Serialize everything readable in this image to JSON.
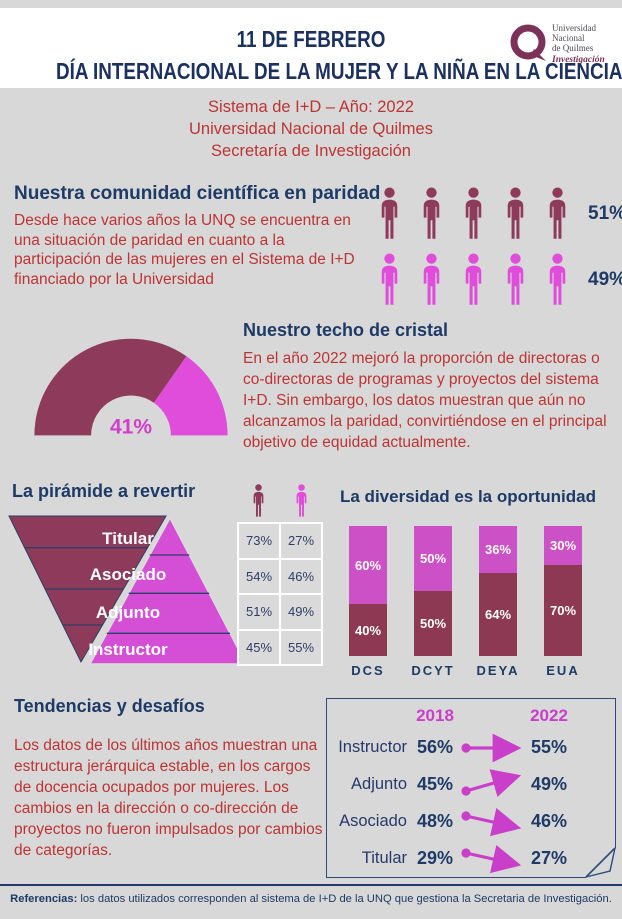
{
  "colors": {
    "background": "#d8d8d8",
    "band": "#ffffff",
    "navy": "#1e3a66",
    "red": "#bc3434",
    "maroon": "#8e3a5a",
    "magenta_bright": "#e04ddb",
    "pyramid_magenta": "#d44fd6",
    "bar_magenta": "#cc50c6",
    "bar_maroon": "#8d3954",
    "trend_magenta": "#c93fc9",
    "logo_plum": "#7c3158"
  },
  "header": {
    "title_line1": "11 DE FEBRERO",
    "title_line2": "DÍA INTERNACIONAL DE LA MUJER Y LA NIÑA EN LA CIENCIA",
    "logo": {
      "line1": "Universidad",
      "line2": "Nacional",
      "line3": "de Quilmes",
      "line4": "Investigación"
    }
  },
  "subtitle": {
    "line1": "Sistema de I+D – Año: 2022",
    "line2": "Universidad Nacional de Quilmes",
    "line3": "Secretaría de Investigación"
  },
  "paridad": {
    "heading": "Nuestra comunidad científica en paridad",
    "body": "Desde hace varios años la UNQ se encuentra en una situación de paridad en cuanto a la participación de las mujeres en el Sistema de I+D financiado por la Universidad",
    "men_count": 5,
    "women_count": 5,
    "men_pct": "51%",
    "women_pct": "49%"
  },
  "techo": {
    "heading": "Nuestro techo de cristal",
    "body": "En el año 2022 mejoró la proporción de directoras o co-directoras de programas y proyectos del sistema I+D. Sin embargo, los datos muestran que aún no alcanzamos la paridad, convirtiéndose en el principal objetivo de equidad actualmente.",
    "gauge_label": "41%"
  },
  "piramide": {
    "heading": "La pirámide a revertir",
    "levels": [
      "Titular",
      "Asociado",
      "Adjunto",
      "Instructor"
    ],
    "table_rows": [
      [
        "73%",
        "27%"
      ],
      [
        "54%",
        "46%"
      ],
      [
        "51%",
        "49%"
      ],
      [
        "45%",
        "55%"
      ]
    ]
  },
  "diversidad": {
    "heading": "La diversidad es la oportunidad"
  },
  "tendencias": {
    "heading": "Tendencias y desafíos",
    "body": "Los datos de los últimos años muestran una estructura jerárquica estable, en los cargos de docencia ocupados por mujeres. Los cambios en la dirección o co-dirección de proyectos no fueron impulsados por cambios de categorías.",
    "year_headers": [
      "2018",
      "2022"
    ],
    "rows": [
      {
        "label": "Instructor",
        "v2018": "56%",
        "v2022": "55%",
        "trend": "flat"
      },
      {
        "label": "Adjunto",
        "v2018": "45%",
        "v2022": "49%",
        "trend": "up"
      },
      {
        "label": "Asociado",
        "v2018": "48%",
        "v2022": "46%",
        "trend": "down"
      },
      {
        "label": "Titular",
        "v2018": "29%",
        "v2022": "27%",
        "trend": "down"
      }
    ]
  },
  "footer": {
    "bold": "Referencias:",
    "text": " los datos utilizados corresponden al sistema de I+D de la UNQ que gestiona la Secretaria de Investigación."
  },
  "chart_data": [
    {
      "id": "paridad",
      "type": "pictogram",
      "title": "Nuestra comunidad científica en paridad",
      "categories": [
        "fila bordó (5 íconos)",
        "fila magenta (5 íconos)"
      ],
      "values": [
        51,
        49
      ],
      "unit": "%"
    },
    {
      "id": "techo",
      "type": "gauge",
      "title": "Nuestro techo de cristal",
      "value": 41,
      "unit": "%",
      "range": [
        0,
        100
      ]
    },
    {
      "id": "piramide",
      "type": "table",
      "title": "La pirámide a revertir",
      "categories": [
        "Titular",
        "Asociado",
        "Adjunto",
        "Instructor"
      ],
      "series": [
        {
          "name": "columna ícono bordó",
          "values": [
            73,
            54,
            51,
            45
          ]
        },
        {
          "name": "columna ícono magenta",
          "values": [
            27,
            46,
            49,
            55
          ]
        }
      ],
      "unit": "%"
    },
    {
      "id": "diversidad",
      "type": "bar",
      "subtype": "stacked",
      "title": "La diversidad es la oportunidad",
      "categories": [
        "DCS",
        "DCYT",
        "DEYA",
        "EUA"
      ],
      "series": [
        {
          "name": "segmento magenta (superior)",
          "values": [
            60,
            50,
            36,
            30
          ],
          "color": "#cc50c6"
        },
        {
          "name": "segmento bordó (inferior)",
          "values": [
            40,
            50,
            64,
            70
          ],
          "color": "#8d3954"
        }
      ],
      "unit": "%",
      "ylim": [
        0,
        100
      ],
      "grid": false,
      "legend": "none"
    },
    {
      "id": "tendencias",
      "type": "table",
      "title": "Tendencias y desafíos",
      "categories": [
        "Instructor",
        "Adjunto",
        "Asociado",
        "Titular"
      ],
      "series": [
        {
          "name": "2018",
          "values": [
            56,
            45,
            48,
            29
          ]
        },
        {
          "name": "2022",
          "values": [
            55,
            49,
            46,
            27
          ]
        }
      ],
      "unit": "%"
    }
  ]
}
